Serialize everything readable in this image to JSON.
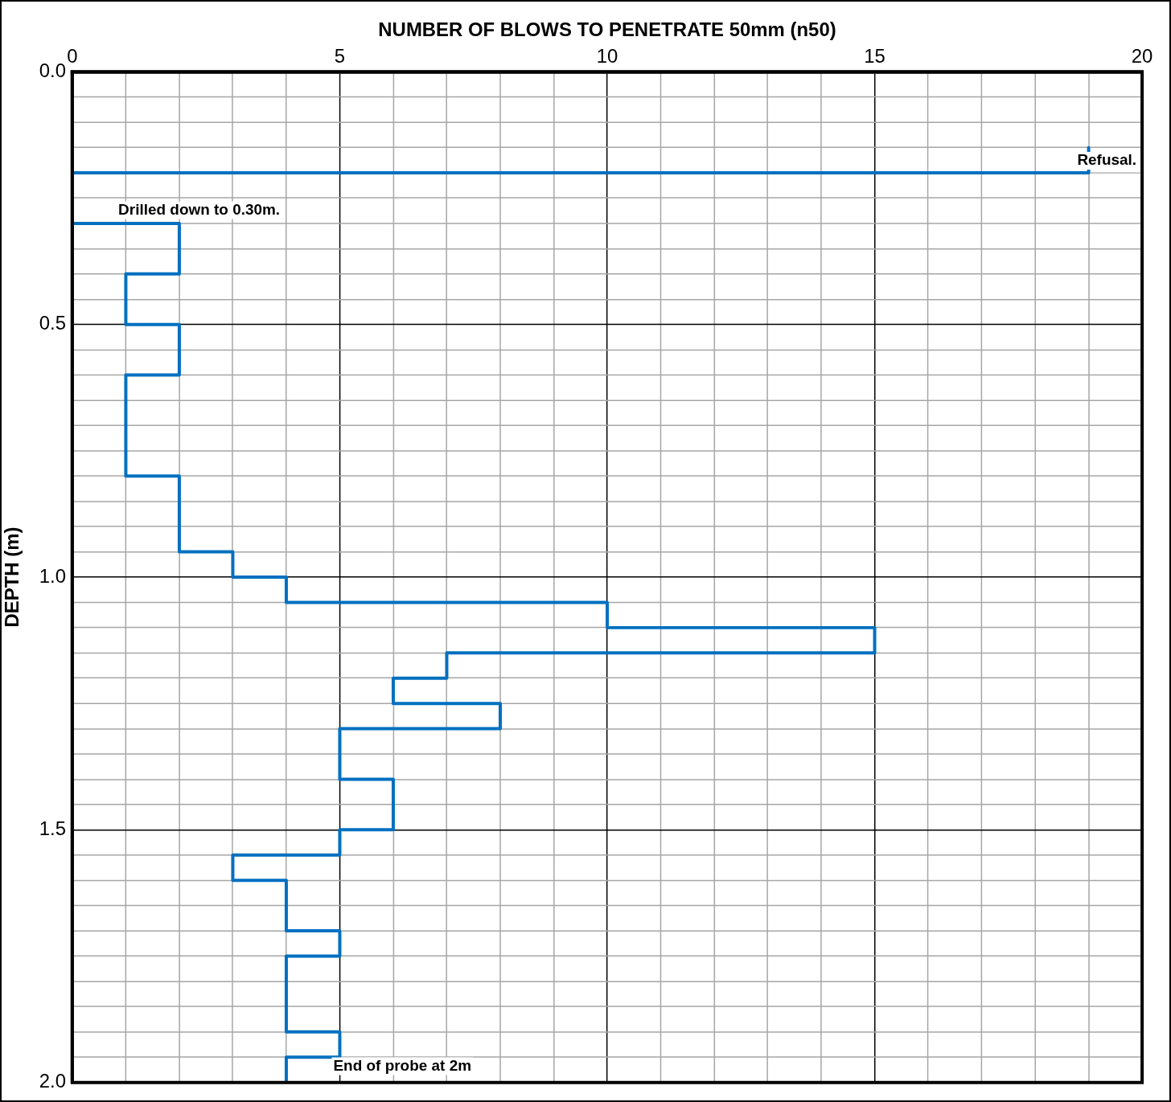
{
  "chart_data": {
    "type": "line",
    "xlabel": "NUMBER OF BLOWS TO PENETRATE 50mm (n50)",
    "ylabel": "DEPTH (m)",
    "x": [
      19,
      19,
      0,
      0,
      2,
      2,
      1,
      1,
      2,
      2,
      1,
      1,
      2,
      2,
      3,
      3,
      4,
      4,
      10,
      10,
      15,
      15,
      7,
      7,
      6,
      6,
      8,
      8,
      5,
      5,
      6,
      6,
      5,
      5,
      3,
      3,
      4,
      4,
      5,
      5,
      4,
      4,
      5,
      5,
      4,
      4
    ],
    "series": [
      {
        "color": "#0070c0",
        "values": [
          0.15,
          0.2,
          0.2,
          0.3,
          0.3,
          0.4,
          0.4,
          0.5,
          0.5,
          0.6,
          0.6,
          0.8,
          0.8,
          0.95,
          0.95,
          1.0,
          1.0,
          1.05,
          1.05,
          1.1,
          1.1,
          1.15,
          1.15,
          1.2,
          1.2,
          1.25,
          1.25,
          1.3,
          1.3,
          1.4,
          1.4,
          1.5,
          1.5,
          1.55,
          1.55,
          1.6,
          1.6,
          1.7,
          1.7,
          1.75,
          1.75,
          1.9,
          1.9,
          1.95,
          1.95,
          2.0
        ]
      }
    ],
    "xlim": [
      0,
      20
    ],
    "xticks": [
      0,
      {
        "value": 1,
        "label": null
      },
      {
        "value": 2,
        "label": null
      },
      {
        "value": 3,
        "label": null
      },
      {
        "value": 4,
        "label": null
      },
      5,
      {
        "value": 6,
        "label": null
      },
      {
        "value": 7,
        "label": null
      },
      {
        "value": 8,
        "label": null
      },
      {
        "value": 9,
        "label": null
      },
      10,
      {
        "value": 11,
        "label": null
      },
      {
        "value": 12,
        "label": null
      },
      {
        "value": 13,
        "label": null
      },
      {
        "value": 14,
        "label": null
      },
      15,
      {
        "value": 16,
        "label": null
      },
      {
        "value": 17,
        "label": null
      },
      {
        "value": 18,
        "label": null
      },
      {
        "value": 19,
        "label": null
      },
      20
    ],
    "ylim": [
      2.0,
      0.0
    ],
    "yticks": [
      {
        "value": 0,
        "label": "0.0"
      },
      {
        "value": 0.05,
        "label": null
      },
      {
        "value": 0.1,
        "label": null
      },
      {
        "value": 0.15,
        "label": null
      },
      {
        "value": 0.2,
        "label": null
      },
      {
        "value": 0.25,
        "label": null
      },
      {
        "value": 0.3,
        "label": null
      },
      {
        "value": 0.35,
        "label": null
      },
      {
        "value": 0.4,
        "label": null
      },
      {
        "value": 0.45,
        "label": null
      },
      {
        "value": 0.5,
        "label": "0.5"
      },
      {
        "value": 0.55,
        "label": null
      },
      {
        "value": 0.6,
        "label": null
      },
      {
        "value": 0.65,
        "label": null
      },
      {
        "value": 0.7,
        "label": null
      },
      {
        "value": 0.75,
        "label": null
      },
      {
        "value": 0.8,
        "label": null
      },
      {
        "value": 0.85,
        "label": null
      },
      {
        "value": 0.9,
        "label": null
      },
      {
        "value": 0.95,
        "label": null
      },
      {
        "value": 1.0,
        "label": "1.0"
      },
      {
        "value": 1.05,
        "label": null
      },
      {
        "value": 1.1,
        "label": null
      },
      {
        "value": 1.15,
        "label": null
      },
      {
        "value": 1.2,
        "label": null
      },
      {
        "value": 1.25,
        "label": null
      },
      {
        "value": 1.3,
        "label": null
      },
      {
        "value": 1.35,
        "label": null
      },
      {
        "value": 1.4,
        "label": null
      },
      {
        "value": 1.45,
        "label": null
      },
      {
        "value": 1.5,
        "label": "1.5"
      },
      {
        "value": 1.55,
        "label": null
      },
      {
        "value": 1.6,
        "label": null
      },
      {
        "value": 1.65,
        "label": null
      },
      {
        "value": 1.7,
        "label": null
      },
      {
        "value": 1.75,
        "label": null
      },
      {
        "value": 1.8,
        "label": null
      },
      {
        "value": 1.85,
        "label": null
      },
      {
        "value": 1.9,
        "label": null
      },
      {
        "value": 1.95,
        "label": null
      },
      {
        "value": 2.0,
        "label": "2.0"
      }
    ],
    "grid": true,
    "legend": false,
    "marker": "none",
    "line_style": "solid",
    "annotations": [
      "Refusal.",
      "Drilled down to 0.30m.",
      "End of probe at 2m"
    ]
  }
}
